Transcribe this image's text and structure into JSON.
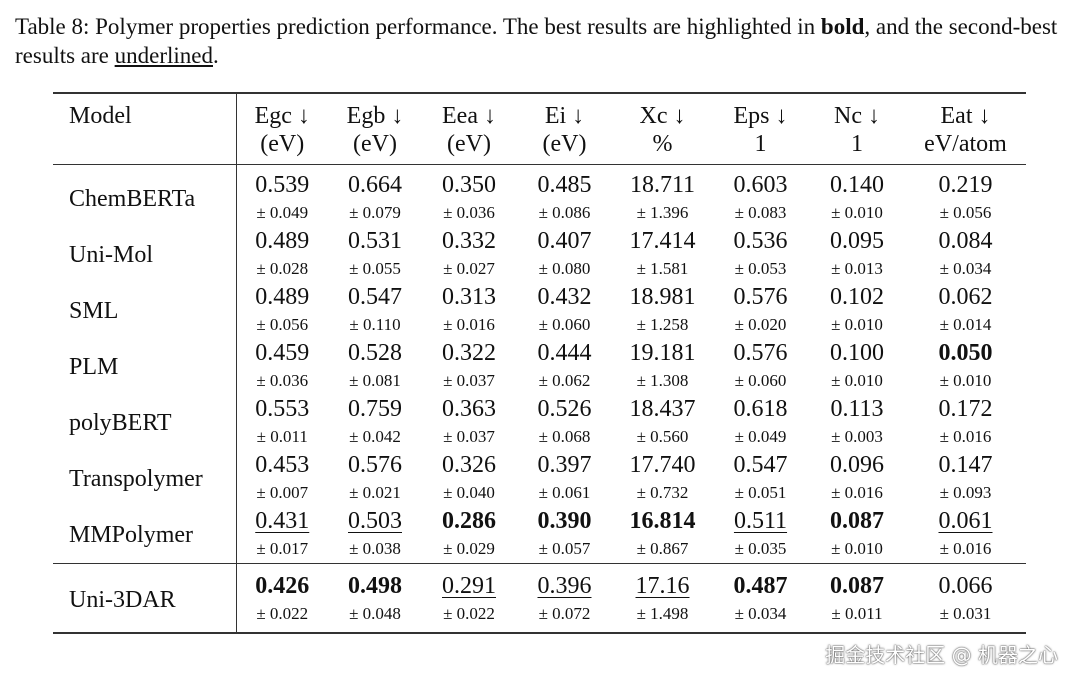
{
  "caption": {
    "prefix": "Table 8: Polymer properties prediction performance. The best results are highlighted in ",
    "bold_word": "bold",
    "middle": ", and the second-best results are ",
    "underline_word": "underlined",
    "suffix": "."
  },
  "header": {
    "model": "Model",
    "columns": [
      {
        "name": "Egc ↓",
        "unit": "(eV)"
      },
      {
        "name": "Egb ↓",
        "unit": "(eV)"
      },
      {
        "name": "Eea ↓",
        "unit": "(eV)"
      },
      {
        "name": "Ei ↓",
        "unit": "(eV)"
      },
      {
        "name": "Xc ↓",
        "unit": "%"
      },
      {
        "name": "Eps ↓",
        "unit": "1"
      },
      {
        "name": "Nc ↓",
        "unit": "1"
      },
      {
        "name": "Eat ↓",
        "unit": "eV/atom"
      }
    ]
  },
  "rows": [
    {
      "model": "ChemBERTa",
      "cells": [
        {
          "v": "0.539",
          "s": "± 0.049",
          "style": ""
        },
        {
          "v": "0.664",
          "s": "± 0.079",
          "style": ""
        },
        {
          "v": "0.350",
          "s": "± 0.036",
          "style": ""
        },
        {
          "v": "0.485",
          "s": "± 0.086",
          "style": ""
        },
        {
          "v": "18.711",
          "s": "± 1.396",
          "style": ""
        },
        {
          "v": "0.603",
          "s": "± 0.083",
          "style": ""
        },
        {
          "v": "0.140",
          "s": "± 0.010",
          "style": ""
        },
        {
          "v": "0.219",
          "s": "± 0.056",
          "style": ""
        }
      ]
    },
    {
      "model": "Uni-Mol",
      "cells": [
        {
          "v": "0.489",
          "s": "± 0.028",
          "style": ""
        },
        {
          "v": "0.531",
          "s": "± 0.055",
          "style": ""
        },
        {
          "v": "0.332",
          "s": "± 0.027",
          "style": ""
        },
        {
          "v": "0.407",
          "s": "± 0.080",
          "style": ""
        },
        {
          "v": "17.414",
          "s": "± 1.581",
          "style": ""
        },
        {
          "v": "0.536",
          "s": "± 0.053",
          "style": ""
        },
        {
          "v": "0.095",
          "s": "± 0.013",
          "style": ""
        },
        {
          "v": "0.084",
          "s": "± 0.034",
          "style": ""
        }
      ]
    },
    {
      "model": "SML",
      "cells": [
        {
          "v": "0.489",
          "s": "± 0.056",
          "style": ""
        },
        {
          "v": "0.547",
          "s": "± 0.110",
          "style": ""
        },
        {
          "v": "0.313",
          "s": "± 0.016",
          "style": ""
        },
        {
          "v": "0.432",
          "s": "± 0.060",
          "style": ""
        },
        {
          "v": "18.981",
          "s": "± 1.258",
          "style": ""
        },
        {
          "v": "0.576",
          "s": "± 0.020",
          "style": ""
        },
        {
          "v": "0.102",
          "s": "± 0.010",
          "style": ""
        },
        {
          "v": "0.062",
          "s": "± 0.014",
          "style": ""
        }
      ]
    },
    {
      "model": "PLM",
      "cells": [
        {
          "v": "0.459",
          "s": "± 0.036",
          "style": ""
        },
        {
          "v": "0.528",
          "s": "± 0.081",
          "style": ""
        },
        {
          "v": "0.322",
          "s": "± 0.037",
          "style": ""
        },
        {
          "v": "0.444",
          "s": "± 0.062",
          "style": ""
        },
        {
          "v": "19.181",
          "s": "± 1.308",
          "style": ""
        },
        {
          "v": "0.576",
          "s": "± 0.060",
          "style": ""
        },
        {
          "v": "0.100",
          "s": "± 0.010",
          "style": ""
        },
        {
          "v": "0.050",
          "s": "± 0.010",
          "style": "bold"
        }
      ]
    },
    {
      "model": "polyBERT",
      "cells": [
        {
          "v": "0.553",
          "s": "± 0.011",
          "style": ""
        },
        {
          "v": "0.759",
          "s": "± 0.042",
          "style": ""
        },
        {
          "v": "0.363",
          "s": "± 0.037",
          "style": ""
        },
        {
          "v": "0.526",
          "s": "± 0.068",
          "style": ""
        },
        {
          "v": "18.437",
          "s": "± 0.560",
          "style": ""
        },
        {
          "v": "0.618",
          "s": "± 0.049",
          "style": ""
        },
        {
          "v": "0.113",
          "s": "± 0.003",
          "style": ""
        },
        {
          "v": "0.172",
          "s": "± 0.016",
          "style": ""
        }
      ]
    },
    {
      "model": "Transpolymer",
      "cells": [
        {
          "v": "0.453",
          "s": "± 0.007",
          "style": ""
        },
        {
          "v": "0.576",
          "s": "± 0.021",
          "style": ""
        },
        {
          "v": "0.326",
          "s": "± 0.040",
          "style": ""
        },
        {
          "v": "0.397",
          "s": "± 0.061",
          "style": ""
        },
        {
          "v": "17.740",
          "s": "± 0.732",
          "style": ""
        },
        {
          "v": "0.547",
          "s": "± 0.051",
          "style": ""
        },
        {
          "v": "0.096",
          "s": "± 0.016",
          "style": ""
        },
        {
          "v": "0.147",
          "s": "± 0.093",
          "style": ""
        }
      ]
    },
    {
      "model": "MMPolymer",
      "cells": [
        {
          "v": "0.431",
          "s": "± 0.017",
          "style": "underline"
        },
        {
          "v": "0.503",
          "s": "± 0.038",
          "style": "underline"
        },
        {
          "v": "0.286",
          "s": "± 0.029",
          "style": "bold"
        },
        {
          "v": "0.390",
          "s": "± 0.057",
          "style": "bold"
        },
        {
          "v": "16.814",
          "s": "± 0.867",
          "style": "bold"
        },
        {
          "v": "0.511",
          "s": "± 0.035",
          "style": "underline"
        },
        {
          "v": "0.087",
          "s": "± 0.010",
          "style": "bold"
        },
        {
          "v": "0.061",
          "s": "± 0.016",
          "style": "underline"
        }
      ]
    }
  ],
  "ours": {
    "model": "Uni-3DAR",
    "cells": [
      {
        "v": "0.426",
        "s": "± 0.022",
        "style": "bold"
      },
      {
        "v": "0.498",
        "s": "± 0.048",
        "style": "bold"
      },
      {
        "v": "0.291",
        "s": "± 0.022",
        "style": "underline"
      },
      {
        "v": "0.396",
        "s": "± 0.072",
        "style": "underline"
      },
      {
        "v": "17.16",
        "s": "± 1.498",
        "style": "underline"
      },
      {
        "v": "0.487",
        "s": "± 0.034",
        "style": "bold"
      },
      {
        "v": "0.087",
        "s": "± 0.011",
        "style": "bold"
      },
      {
        "v": "0.066",
        "s": "± 0.031",
        "style": ""
      }
    ]
  },
  "watermark": "掘金技术社区 @ 机器之心"
}
